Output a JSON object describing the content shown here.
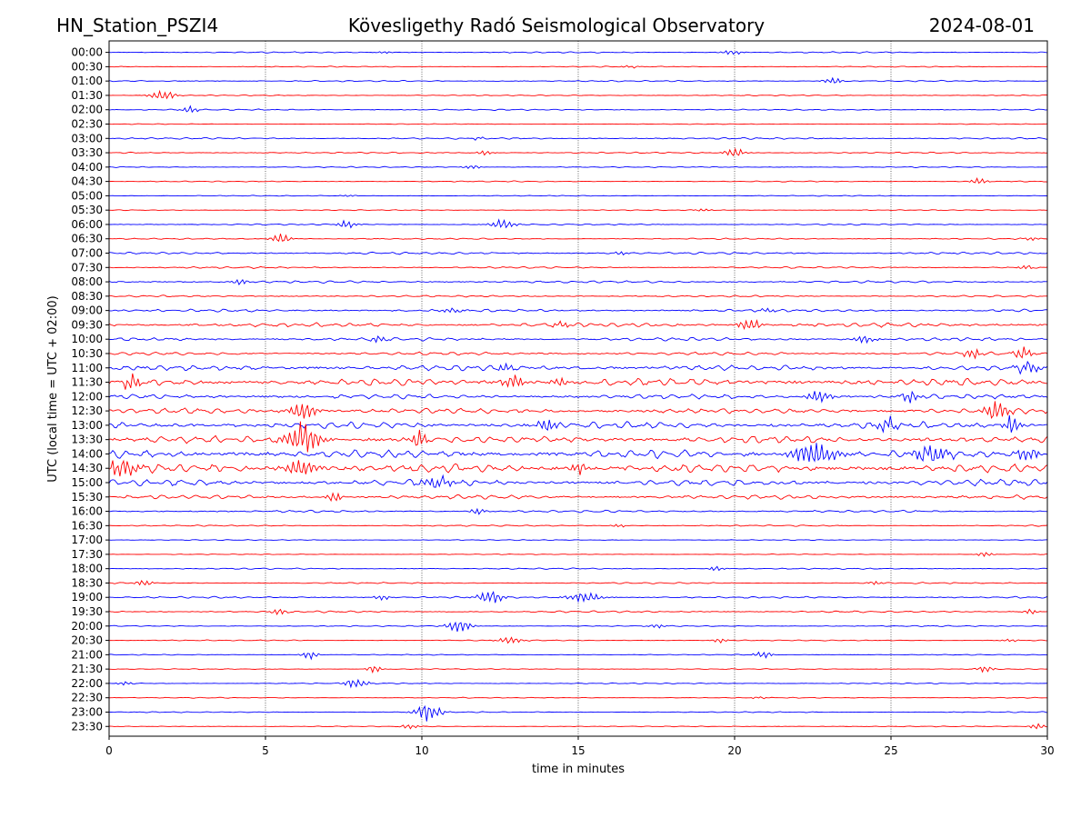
{
  "chart_data": {
    "type": "line",
    "title_left": "HN_Station_PSZI4",
    "title_center": "Kövesligethy Radó Seismological Observatory",
    "title_right": "2024-08-01",
    "xlabel": "time in minutes",
    "ylabel": "UTC (local time = UTC + 02:00)",
    "xlim": [
      0,
      30
    ],
    "x_ticks": [
      0,
      5,
      10,
      15,
      20,
      25,
      30
    ],
    "x_tick_labels": [
      "0",
      "5",
      "10",
      "15",
      "20",
      "25",
      "30"
    ],
    "grid_vertical_at": [
      5,
      10,
      15,
      20,
      25
    ],
    "series_colors": [
      "#0000ff",
      "#ff0000"
    ],
    "row_labels": [
      "00:00",
      "00:30",
      "01:00",
      "01:30",
      "02:00",
      "02:30",
      "03:00",
      "03:30",
      "04:00",
      "04:30",
      "05:00",
      "05:30",
      "06:00",
      "06:30",
      "07:00",
      "07:30",
      "08:00",
      "08:30",
      "09:00",
      "09:30",
      "10:00",
      "10:30",
      "11:00",
      "11:30",
      "12:00",
      "12:30",
      "13:00",
      "13:30",
      "14:00",
      "14:30",
      "15:00",
      "15:30",
      "16:00",
      "16:30",
      "17:00",
      "17:30",
      "18:00",
      "18:30",
      "19:00",
      "19:30",
      "20:00",
      "20:30",
      "21:00",
      "21:30",
      "22:00",
      "22:30",
      "23:00",
      "23:30"
    ],
    "row_amplitude": [
      0.15,
      0.12,
      0.15,
      0.12,
      0.15,
      0.08,
      0.2,
      0.15,
      0.12,
      0.12,
      0.1,
      0.1,
      0.15,
      0.15,
      0.25,
      0.2,
      0.25,
      0.2,
      0.3,
      0.45,
      0.35,
      0.35,
      0.6,
      0.8,
      0.5,
      0.6,
      0.7,
      0.8,
      0.85,
      0.9,
      0.7,
      0.45,
      0.25,
      0.15,
      0.1,
      0.08,
      0.15,
      0.15,
      0.2,
      0.2,
      0.12,
      0.12,
      0.1,
      0.1,
      0.12,
      0.1,
      0.12,
      0.1
    ],
    "events": [
      [
        [
          8.8,
          0.15,
          1
        ],
        [
          19.9,
          0.3,
          1.2
        ]
      ],
      [
        [
          16.7,
          0.1,
          1.5
        ]
      ],
      [
        [
          23.1,
          0.4,
          1.2
        ]
      ],
      [
        [
          1.7,
          0.6,
          1.5
        ]
      ],
      [
        [
          2.6,
          0.4,
          1
        ]
      ],
      [],
      [
        [
          11.8,
          0.15,
          1
        ]
      ],
      [
        [
          12,
          0.3,
          1
        ],
        [
          20,
          0.6,
          1.2
        ]
      ],
      [
        [
          11.6,
          0.3,
          1
        ]
      ],
      [
        [
          27.8,
          0.4,
          1
        ]
      ],
      [
        [
          7.7,
          0.15,
          1
        ]
      ],
      [
        [
          19,
          0.2,
          1
        ]
      ],
      [
        [
          7.6,
          0.5,
          1.2
        ],
        [
          12.6,
          0.6,
          1.5
        ]
      ],
      [
        [
          5.5,
          0.6,
          1.2
        ],
        [
          29.5,
          0.2,
          1
        ]
      ],
      [
        [
          16.4,
          0.2,
          1
        ]
      ],
      [
        [
          29.3,
          0.2,
          1
        ]
      ],
      [
        [
          4.2,
          0.4,
          1
        ]
      ],
      [],
      [
        [
          11,
          0.3,
          1.5
        ],
        [
          21,
          0.3,
          1
        ]
      ],
      [
        [
          20.5,
          0.7,
          1.5
        ],
        [
          14.5,
          0.4,
          1
        ]
      ],
      [
        [
          8.6,
          0.4,
          1
        ],
        [
          24.2,
          0.4,
          1.5
        ]
      ],
      [
        [
          27.6,
          0.7,
          1
        ],
        [
          29.2,
          0.9,
          1
        ]
      ],
      [
        [
          12.7,
          0.6,
          1
        ],
        [
          29.4,
          0.7,
          1.5
        ]
      ],
      [
        [
          0.7,
          1,
          1
        ],
        [
          12.9,
          0.8,
          1.5
        ],
        [
          14.4,
          0.6,
          1
        ]
      ],
      [
        [
          22.7,
          0.7,
          1.5
        ],
        [
          25.6,
          0.7,
          1
        ]
      ],
      [
        [
          6.2,
          1.2,
          1.5
        ],
        [
          28.4,
          1.3,
          1.5
        ]
      ],
      [
        [
          14,
          0.8,
          1.2
        ],
        [
          24.9,
          0.9,
          1.2
        ],
        [
          28.9,
          1.4,
          1
        ]
      ],
      [
        [
          6.2,
          2,
          2
        ],
        [
          9.9,
          1.3,
          1
        ]
      ],
      [
        [
          22.5,
          1.2,
          3
        ],
        [
          26.3,
          1.2,
          2
        ],
        [
          29.3,
          0.9,
          1.5
        ]
      ],
      [
        [
          0.4,
          1.2,
          2
        ],
        [
          6.1,
          1.1,
          2
        ],
        [
          15,
          0.8,
          1
        ]
      ],
      [
        [
          10.5,
          0.7,
          2
        ]
      ],
      [
        [
          7.2,
          0.6,
          1
        ]
      ],
      [
        [
          11.8,
          0.4,
          1
        ]
      ],
      [
        [
          16.3,
          0.2,
          1
        ]
      ],
      [],
      [
        [
          28,
          0.25,
          1
        ]
      ],
      [
        [
          19.4,
          0.3,
          1
        ]
      ],
      [
        [
          1.1,
          0.4,
          1
        ],
        [
          24.5,
          0.2,
          1
        ]
      ],
      [
        [
          8.7,
          0.4,
          1
        ],
        [
          12.2,
          0.9,
          1.5
        ],
        [
          15.2,
          0.6,
          2
        ]
      ],
      [
        [
          5.4,
          0.4,
          1
        ],
        [
          29.5,
          0.3,
          1
        ]
      ],
      [
        [
          11.2,
          0.8,
          1.5
        ],
        [
          17.5,
          0.3,
          1
        ]
      ],
      [
        [
          12.8,
          0.4,
          1.5
        ],
        [
          19.5,
          0.3,
          1
        ],
        [
          28.8,
          0.2,
          1
        ]
      ],
      [
        [
          6.4,
          0.5,
          1
        ],
        [
          20.9,
          0.5,
          1
        ]
      ],
      [
        [
          8.5,
          0.6,
          0.8
        ],
        [
          28,
          0.4,
          1
        ]
      ],
      [
        [
          0.5,
          0.2,
          1
        ],
        [
          7.9,
          0.6,
          1.5
        ]
      ],
      [
        [
          20.8,
          0.15,
          1
        ]
      ],
      [
        [
          10.2,
          1.2,
          1.5
        ]
      ],
      [
        [
          9.6,
          0.3,
          1
        ],
        [
          29.7,
          0.35,
          1
        ]
      ]
    ]
  }
}
